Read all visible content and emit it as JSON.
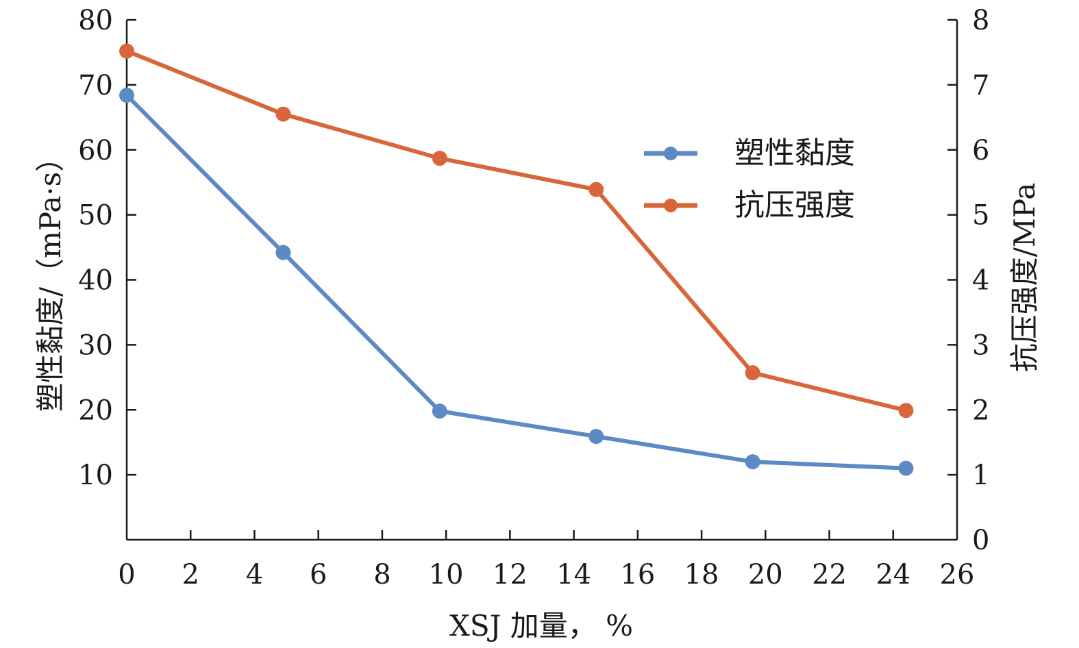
{
  "chart_data": {
    "type": "line",
    "title": "",
    "xlabel": "XSJ 加量， %",
    "ylabel_left": "塑性黏度/（mPa·s）",
    "ylabel_right": "抗压强度/MPa",
    "xlim": [
      0,
      26
    ],
    "ylim_left": [
      0,
      80
    ],
    "ylim_right": [
      0,
      8
    ],
    "x_ticks": [
      "0",
      "2",
      "4",
      "6",
      "8",
      "10",
      "12",
      "14",
      "16",
      "18",
      "20",
      "22",
      "24",
      "26"
    ],
    "y_left_ticks": [
      "10",
      "20",
      "30",
      "40",
      "50",
      "60",
      "70",
      "80"
    ],
    "y_right_ticks": [
      "0",
      "1",
      "2",
      "3",
      "4",
      "5",
      "6",
      "7",
      "8"
    ],
    "grid": false,
    "legend_position": "upper-right",
    "series": [
      {
        "name": "塑性黏度",
        "axis": "left",
        "color": "#5b8ac5",
        "x": [
          0,
          4.9,
          9.8,
          14.7,
          19.6,
          24.4
        ],
        "values": [
          68.4,
          44.2,
          19.8,
          15.9,
          12.0,
          11.0
        ]
      },
      {
        "name": "抗压强度",
        "axis": "right",
        "color": "#d9663a",
        "x": [
          0,
          4.9,
          9.8,
          14.7,
          19.6,
          24.4
        ],
        "values": [
          7.52,
          6.55,
          5.87,
          5.39,
          2.57,
          1.99
        ]
      }
    ]
  }
}
